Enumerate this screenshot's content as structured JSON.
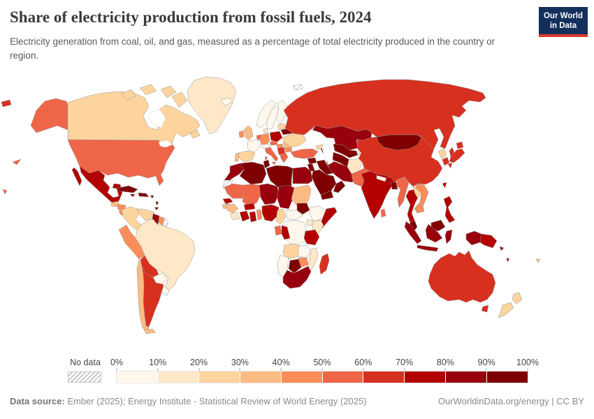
{
  "header": {
    "title": "Share of electricity production from fossil fuels, 2024",
    "subtitle": "Electricity generation from coal, oil, and gas, measured as a percentage of total electricity produced in the country or region."
  },
  "logo": {
    "line1": "Our World",
    "line2": "in Data",
    "navy": "#12305b",
    "red": "#d93a2c"
  },
  "footer": {
    "datasource_label": "Data source:",
    "datasource_text": " Ember (2025); Energy Institute - Statistical Review of World Energy (2025)",
    "right_text": "OurWorldinData.org/energy | CC BY"
  },
  "chart_data": {
    "type": "choropleth_map",
    "title": "Share of electricity production from fossil fuels, 2024",
    "unit": "%",
    "projection": "world",
    "legend": {
      "no_data_label": "No data",
      "tick_labels": [
        "0%",
        "10%",
        "20%",
        "30%",
        "40%",
        "50%",
        "60%",
        "70%",
        "80%",
        "90%",
        "100%"
      ],
      "thresholds": [
        10,
        20,
        30,
        40,
        50,
        60,
        70,
        80,
        90,
        100
      ],
      "colors": [
        "#fff7ec",
        "#fee8c8",
        "#fdd49e",
        "#fdbb84",
        "#fc8d59",
        "#ef6548",
        "#d7301f",
        "#b30000",
        "#99000d",
        "#7f0000"
      ]
    },
    "no_data_regions": [
      "western-sahara",
      "french-guiana",
      "svalbard"
    ],
    "countries": [
      {
        "key": "usa",
        "name": "United States",
        "value": 58
      },
      {
        "key": "canada",
        "name": "Canada",
        "value": 25
      },
      {
        "key": "greenland",
        "name": "Greenland",
        "value": 15
      },
      {
        "key": "mexico",
        "name": "Mexico",
        "value": 77
      },
      {
        "key": "guatemala",
        "name": "Guatemala",
        "value": 35
      },
      {
        "key": "honduras",
        "name": "Honduras/Nicaragua",
        "value": 45
      },
      {
        "key": "panama",
        "name": "Panama/Costa Rica",
        "value": 42
      },
      {
        "key": "cuba",
        "name": "Cuba",
        "value": 95
      },
      {
        "key": "hispaniola",
        "name": "Dominican Republic/Haiti",
        "value": 90
      },
      {
        "key": "jamaica",
        "name": "Jamaica",
        "value": 87
      },
      {
        "key": "puerto-rico",
        "name": "Puerto Rico",
        "value": 94
      },
      {
        "key": "trinidad",
        "name": "Trinidad and Tobago",
        "value": 99
      },
      {
        "key": "colombia",
        "name": "Colombia",
        "value": 28
      },
      {
        "key": "venezuela",
        "name": "Venezuela",
        "value": 26
      },
      {
        "key": "guyana",
        "name": "Guyana",
        "value": 87
      },
      {
        "key": "suriname",
        "name": "Suriname",
        "value": 48
      },
      {
        "key": "ecuador",
        "name": "Ecuador",
        "value": 42
      },
      {
        "key": "peru",
        "name": "Peru",
        "value": 45
      },
      {
        "key": "brazil",
        "name": "Brazil",
        "value": 13
      },
      {
        "key": "bolivia",
        "name": "Bolivia",
        "value": 64
      },
      {
        "key": "paraguay",
        "name": "Paraguay",
        "value": 0
      },
      {
        "key": "uruguay",
        "name": "Uruguay",
        "value": 6
      },
      {
        "key": "argentina",
        "name": "Argentina",
        "value": 63
      },
      {
        "key": "chile",
        "name": "Chile",
        "value": 38
      },
      {
        "key": "iceland",
        "name": "Iceland",
        "value": 0
      },
      {
        "key": "norway",
        "name": "Norway",
        "value": 1
      },
      {
        "key": "sweden",
        "name": "Sweden",
        "value": 1
      },
      {
        "key": "finland",
        "name": "Finland",
        "value": 6
      },
      {
        "key": "uk",
        "name": "United Kingdom",
        "value": 32
      },
      {
        "key": "ireland",
        "name": "Ireland",
        "value": 45
      },
      {
        "key": "france",
        "name": "France",
        "value": 5
      },
      {
        "key": "spain",
        "name": "Spain",
        "value": 20
      },
      {
        "key": "portugal",
        "name": "Portugal",
        "value": 32
      },
      {
        "key": "benelux",
        "name": "Netherlands/Belgium",
        "value": 57
      },
      {
        "key": "germany",
        "name": "Germany",
        "value": 46
      },
      {
        "key": "denmark",
        "name": "Denmark",
        "value": 15
      },
      {
        "key": "poland",
        "name": "Poland",
        "value": 73
      },
      {
        "key": "czechia",
        "name": "Czechia/Slovakia",
        "value": 52
      },
      {
        "key": "austria",
        "name": "Austria/Switzerland",
        "value": 8
      },
      {
        "key": "italy",
        "name": "Italy",
        "value": 55
      },
      {
        "key": "hungary",
        "name": "Hungary",
        "value": 42
      },
      {
        "key": "balkans",
        "name": "Serbia/Bosnia",
        "value": 62
      },
      {
        "key": "romania",
        "name": "Romania",
        "value": 35
      },
      {
        "key": "bulgaria",
        "name": "Bulgaria",
        "value": 42
      },
      {
        "key": "greece",
        "name": "Greece",
        "value": 55
      },
      {
        "key": "ukraine",
        "name": "Ukraine",
        "value": 25
      },
      {
        "key": "belarus",
        "name": "Belarus",
        "value": 96
      },
      {
        "key": "baltics",
        "name": "Baltic states",
        "value": 25
      },
      {
        "key": "russia",
        "name": "Russia",
        "value": 64
      },
      {
        "key": "kazakhstan",
        "name": "Kazakhstan",
        "value": 86
      },
      {
        "key": "uzbekistan",
        "name": "Uzbekistan",
        "value": 96
      },
      {
        "key": "turkmenistan",
        "name": "Turkmenistan",
        "value": 100
      },
      {
        "key": "kyrgyzstan",
        "name": "Kyrgyzstan/Tajikistan",
        "value": 15
      },
      {
        "key": "georgia",
        "name": "Georgia",
        "value": 25
      },
      {
        "key": "azerbaijan",
        "name": "Azerbaijan",
        "value": 93
      },
      {
        "key": "turkey",
        "name": "Turkey",
        "value": 57
      },
      {
        "key": "syria",
        "name": "Syria",
        "value": 93
      },
      {
        "key": "iraq",
        "name": "Iraq",
        "value": 98
      },
      {
        "key": "iran",
        "name": "Iran",
        "value": 86
      },
      {
        "key": "israel-jordan",
        "name": "Israel/Jordan",
        "value": 95
      },
      {
        "key": "saudi-arabia",
        "name": "Saudi Arabia",
        "value": 99
      },
      {
        "key": "yemen",
        "name": "Yemen",
        "value": 100
      },
      {
        "key": "oman",
        "name": "Oman",
        "value": 96
      },
      {
        "key": "morocco",
        "name": "Morocco",
        "value": 85
      },
      {
        "key": "algeria",
        "name": "Algeria",
        "value": 99
      },
      {
        "key": "tunisia",
        "name": "Tunisia",
        "value": 97
      },
      {
        "key": "libya",
        "name": "Libya",
        "value": 99
      },
      {
        "key": "egypt",
        "name": "Egypt",
        "value": 88
      },
      {
        "key": "mauritania",
        "name": "Mauritania",
        "value": 55
      },
      {
        "key": "mali",
        "name": "Mali",
        "value": 52
      },
      {
        "key": "niger",
        "name": "Niger",
        "value": 86
      },
      {
        "key": "chad",
        "name": "Chad",
        "value": 89
      },
      {
        "key": "sudan",
        "name": "Sudan",
        "value": 35
      },
      {
        "key": "senegal",
        "name": "Senegal",
        "value": 78
      },
      {
        "key": "gambia-bissau",
        "name": "Gambia/Guinea-Bissau",
        "value": 38
      },
      {
        "key": "guinea",
        "name": "Guinea",
        "value": 35
      },
      {
        "key": "liberia",
        "name": "Liberia/Sierra Leone",
        "value": 15
      },
      {
        "key": "ivory-coast",
        "name": "Cote d'Ivoire",
        "value": 75
      },
      {
        "key": "burkina-faso",
        "name": "Burkina Faso",
        "value": 72
      },
      {
        "key": "ghana",
        "name": "Ghana",
        "value": 72
      },
      {
        "key": "benin",
        "name": "Benin/Togo",
        "value": 48
      },
      {
        "key": "nigeria",
        "name": "Nigeria",
        "value": 76
      },
      {
        "key": "cameroon",
        "name": "Cameroon",
        "value": 25
      },
      {
        "key": "central-african-republic",
        "name": "Central African Republic",
        "value": 2
      },
      {
        "key": "south-sudan",
        "name": "South Sudan",
        "value": 95
      },
      {
        "key": "ethiopia",
        "name": "Ethiopia",
        "value": 1
      },
      {
        "key": "somalia",
        "name": "Somalia",
        "value": 78
      },
      {
        "key": "kenya",
        "name": "Kenya",
        "value": 12
      },
      {
        "key": "uganda",
        "name": "Uganda",
        "value": 12
      },
      {
        "key": "drc",
        "name": "Democratic Republic of Congo",
        "value": 2
      },
      {
        "key": "gabon",
        "name": "Gabon",
        "value": 55
      },
      {
        "key": "congo",
        "name": "Congo",
        "value": 75
      },
      {
        "key": "tanzania",
        "name": "Tanzania",
        "value": 76
      },
      {
        "key": "angola",
        "name": "Angola",
        "value": 28
      },
      {
        "key": "zambia",
        "name": "Zambia",
        "value": 6
      },
      {
        "key": "mozambique",
        "name": "Mozambique",
        "value": 16
      },
      {
        "key": "zimbabwe",
        "name": "Zimbabwe",
        "value": 42
      },
      {
        "key": "botswana",
        "name": "Botswana",
        "value": 99
      },
      {
        "key": "namibia",
        "name": "Namibia",
        "value": 4
      },
      {
        "key": "south-africa",
        "name": "South Africa",
        "value": 86
      },
      {
        "key": "madagascar",
        "name": "Madagascar",
        "value": 65
      },
      {
        "key": "afghanistan",
        "name": "Afghanistan",
        "value": 18
      },
      {
        "key": "pakistan",
        "name": "Pakistan",
        "value": 56
      },
      {
        "key": "india",
        "name": "India",
        "value": 76
      },
      {
        "key": "nepal",
        "name": "Nepal",
        "value": 3
      },
      {
        "key": "bangladesh",
        "name": "Bangladesh",
        "value": 99
      },
      {
        "key": "sri-lanka",
        "name": "Sri Lanka",
        "value": 52
      },
      {
        "key": "myanmar",
        "name": "Myanmar",
        "value": 55
      },
      {
        "key": "thailand",
        "name": "Thailand",
        "value": 75
      },
      {
        "key": "laos",
        "name": "Laos",
        "value": 25
      },
      {
        "key": "vietnam",
        "name": "Vietnam",
        "value": 47
      },
      {
        "key": "cambodia",
        "name": "Cambodia",
        "value": 43
      },
      {
        "key": "malaysia",
        "name": "Malaysia",
        "value": 93
      },
      {
        "key": "china",
        "name": "China",
        "value": 62
      },
      {
        "key": "mongolia",
        "name": "Mongolia",
        "value": 97
      },
      {
        "key": "north-korea",
        "name": "North Korea",
        "value": 22
      },
      {
        "key": "south-korea",
        "name": "South Korea",
        "value": 60
      },
      {
        "key": "japan",
        "name": "Japan",
        "value": 65
      },
      {
        "key": "taiwan",
        "name": "Taiwan",
        "value": 79
      },
      {
        "key": "philippines",
        "name": "Philippines",
        "value": 78
      },
      {
        "key": "indonesia",
        "name": "Indonesia",
        "value": 80
      },
      {
        "key": "papua-new-guinea",
        "name": "Papua New Guinea",
        "value": 78
      },
      {
        "key": "solomon-islands",
        "name": "Solomon Islands",
        "value": 88
      },
      {
        "key": "vanuatu",
        "name": "Vanuatu",
        "value": 85
      },
      {
        "key": "australia",
        "name": "Australia",
        "value": 63
      },
      {
        "key": "new-zealand",
        "name": "New Zealand",
        "value": 22
      },
      {
        "key": "fiji",
        "name": "Fiji",
        "value": 38
      }
    ]
  }
}
